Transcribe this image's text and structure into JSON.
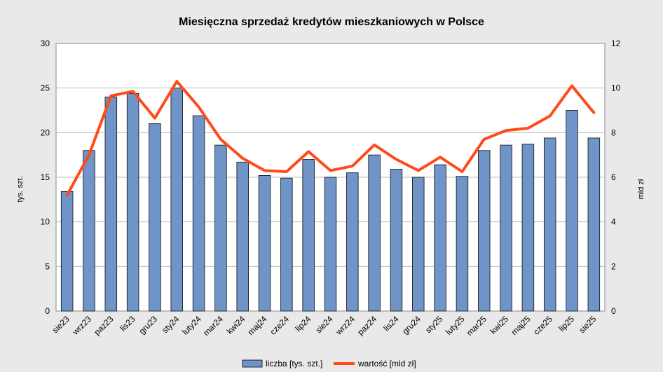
{
  "chart_data": {
    "type": "bar",
    "title": "Miesięczna sprzedaż kredytów mieszkaniowych w Polsce",
    "ylabel_left": "tys. szt.",
    "ylabel_right": "mld zł",
    "ylim_left": [
      0,
      30
    ],
    "ylim_right": [
      0,
      12
    ],
    "yticks_left": [
      0,
      5,
      10,
      15,
      20,
      25,
      30
    ],
    "yticks_right": [
      0,
      2,
      4,
      6,
      8,
      10,
      12
    ],
    "grid": true,
    "legend_position": "bottom-center",
    "categories": [
      "sie23",
      "wrz23",
      "paz23",
      "lis23",
      "gru23",
      "sty24",
      "luty24",
      "mar24",
      "kwi24",
      "maj24",
      "cze24",
      "lip24",
      "sie24",
      "wrz24",
      "paz24",
      "lis24",
      "gru24",
      "sty25",
      "luty25",
      "mar25",
      "kwi25",
      "maj25",
      "cze25",
      "lip25",
      "sie25"
    ],
    "series": [
      {
        "name": "liczba [tys. szt.]",
        "type": "bar",
        "axis": "left",
        "color": "#6f95c8",
        "values": [
          13.4,
          18.0,
          24.0,
          24.4,
          21.0,
          25.0,
          21.9,
          18.6,
          16.7,
          15.2,
          14.9,
          17.0,
          15.0,
          15.5,
          17.5,
          15.9,
          15.0,
          16.4,
          15.1,
          18.0,
          18.6,
          18.7,
          19.4,
          22.5,
          19.4
        ]
      },
      {
        "name": "wartość [mld zł]",
        "type": "line",
        "axis": "right",
        "color": "#ff4a1a",
        "values": [
          5.2,
          7.0,
          9.65,
          9.85,
          8.65,
          10.3,
          9.15,
          7.7,
          6.85,
          6.3,
          6.25,
          7.15,
          6.3,
          6.5,
          7.45,
          6.8,
          6.3,
          6.9,
          6.25,
          7.7,
          8.1,
          8.2,
          8.75,
          10.1,
          8.9
        ]
      }
    ]
  }
}
